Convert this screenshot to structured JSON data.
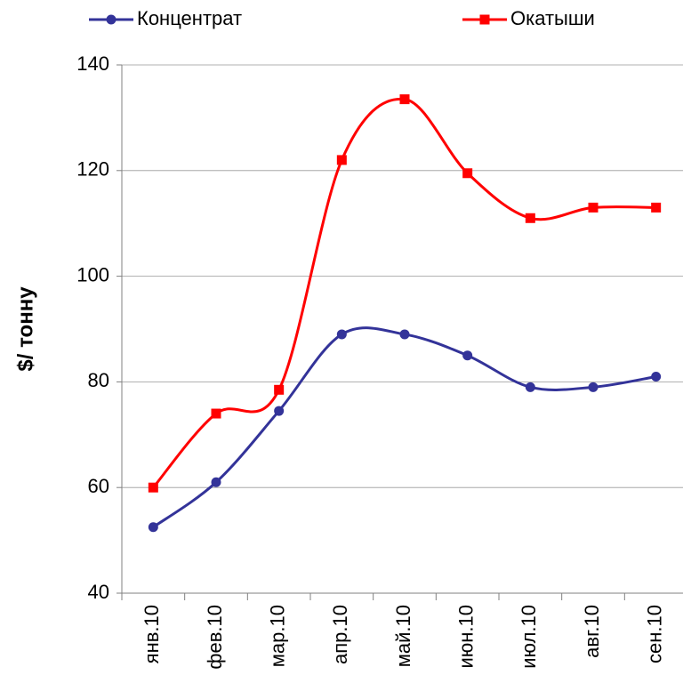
{
  "chart_data": {
    "type": "line",
    "categories": [
      "янв.10",
      "фев.10",
      "мар.10",
      "апр.10",
      "май.10",
      "июн.10",
      "июл.10",
      "авг.10",
      "сен.10"
    ],
    "series": [
      {
        "name": "Концентрат",
        "color": "#333399",
        "marker": "circle",
        "values": [
          52.5,
          61,
          74.5,
          89,
          89,
          85,
          79,
          79,
          81
        ]
      },
      {
        "name": "Окатыши",
        "color": "#ff0000",
        "marker": "square",
        "values": [
          60,
          74,
          78.5,
          122,
          133.5,
          119.5,
          111,
          113,
          113
        ]
      }
    ],
    "ylabel": "$/ тонну",
    "ylim": [
      40,
      140
    ],
    "yticks": [
      40,
      60,
      80,
      100,
      120,
      140
    ],
    "grid": true,
    "smooth": true
  }
}
